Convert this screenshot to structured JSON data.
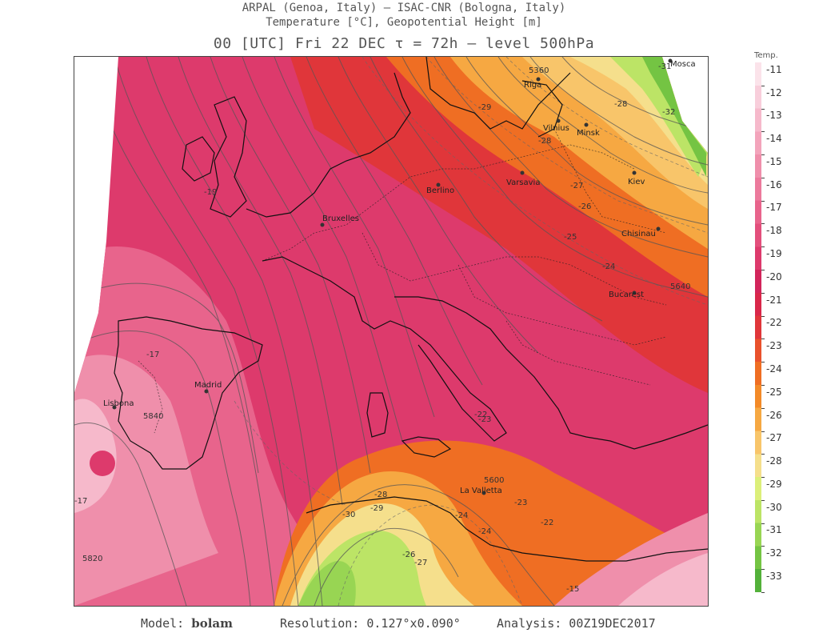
{
  "header": {
    "line1": "ARPAL (Genoa, Italy)  –  ISAC-CNR (Bologna, Italy)",
    "line2": "Temperature [°C], Geopotential Height [m]",
    "line3": "00 [UTC] Fri 22 DEC  τ = 72h  –  level 500hPa"
  },
  "legend": {
    "title": "Temp.",
    "values": [
      "-11",
      "-12",
      "-13",
      "-14",
      "-15",
      "-16",
      "-17",
      "-18",
      "-19",
      "-20",
      "-21",
      "-22",
      "-23",
      "-24",
      "-25",
      "-26",
      "-27",
      "-28",
      "-29",
      "-30",
      "-31",
      "-32",
      "-33"
    ],
    "colors": [
      "#fbe3ea",
      "#f8cedb",
      "#f6b9cb",
      "#f3a4bb",
      "#ef8fab",
      "#ec7a9c",
      "#e8648c",
      "#e34f7c",
      "#dd3a6c",
      "#d2255b",
      "#d9274a",
      "#e0363a",
      "#e9512c",
      "#ef6e23",
      "#f38a28",
      "#f6a842",
      "#f8c56a",
      "#f5df8c",
      "#dcef7a",
      "#bce466",
      "#98d553",
      "#74c443",
      "#53b13a"
    ]
  },
  "cities": [
    {
      "name": "Lisbona"
    },
    {
      "name": "Madrid"
    },
    {
      "name": "Bruxelles"
    },
    {
      "name": "Berlino"
    },
    {
      "name": "Varsavia"
    },
    {
      "name": "Riga"
    },
    {
      "name": "Vilnius"
    },
    {
      "name": "Minsk"
    },
    {
      "name": "Kiev"
    },
    {
      "name": "Chisinau"
    },
    {
      "name": "Bucarest"
    },
    {
      "name": "La Valletta"
    },
    {
      "name": "Mosca"
    }
  ],
  "contour_labels": [
    "-19",
    "-17",
    "-17",
    "5840",
    "5820",
    "-22",
    "-23",
    "-24",
    "-24",
    "-23",
    "-22",
    "-24",
    "-25",
    "-26",
    "-27",
    "-28",
    "-29",
    "-28",
    "-31",
    "-32",
    "-26",
    "-27",
    "-28",
    "-29",
    "-30",
    "5600",
    "5640",
    "5360",
    "-15"
  ],
  "footer": {
    "model_label": "Model:",
    "model_value": "bolam",
    "resolution": "Resolution: 0.127°x0.090°",
    "analysis": "Analysis: 00Z19DEC2017"
  }
}
